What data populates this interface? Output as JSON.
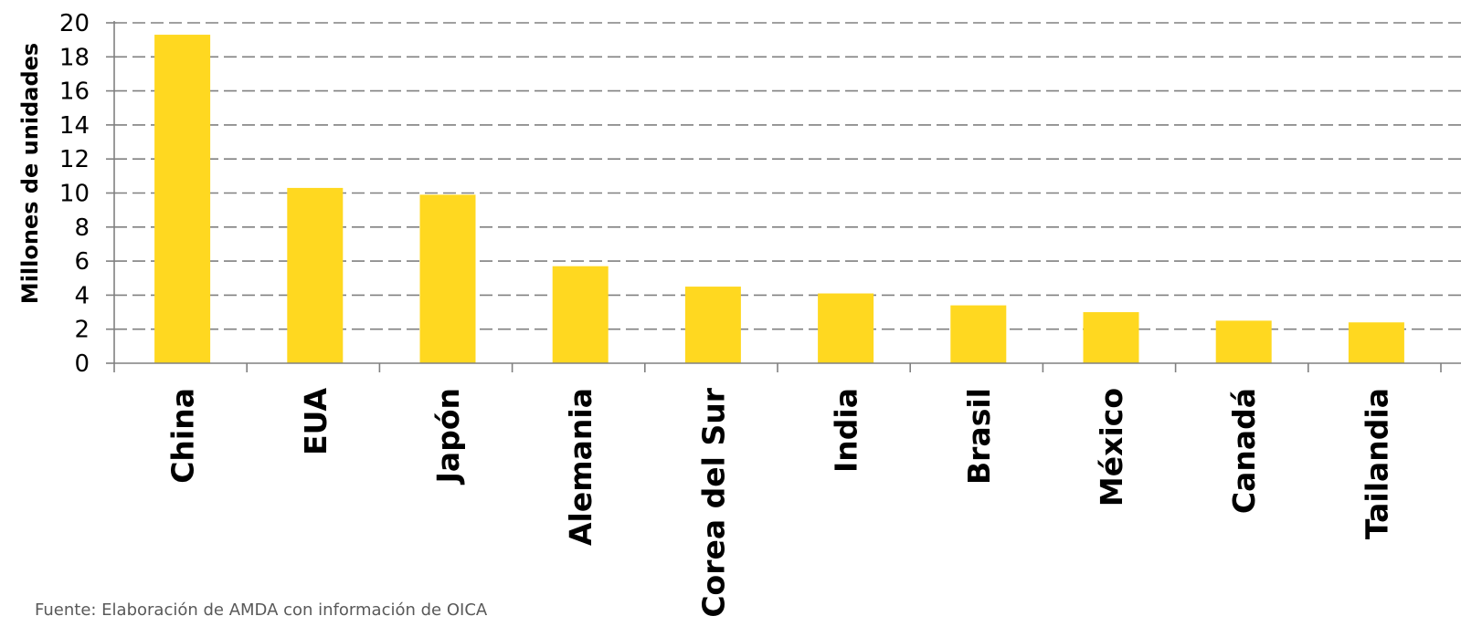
{
  "chart_data": {
    "type": "bar",
    "ylabel": "Millones de unidades",
    "ylim": [
      0,
      20
    ],
    "yticks": [
      0,
      2,
      4,
      6,
      8,
      10,
      12,
      14,
      16,
      18,
      20
    ],
    "grid": true,
    "legend": "none",
    "categories": [
      "China",
      "EUA",
      "Japón",
      "Alemania",
      "Corea del Sur",
      "India",
      "Brasil",
      "México",
      "Canadá",
      "Tailandia"
    ],
    "values": [
      19.3,
      10.3,
      9.9,
      5.7,
      4.5,
      4.1,
      3.4,
      3.0,
      2.5,
      2.4
    ],
    "bar_color": "#FFD820",
    "grid_color": "#808080"
  },
  "source_note": "Fuente: Elaboración de AMDA con información de OICA"
}
